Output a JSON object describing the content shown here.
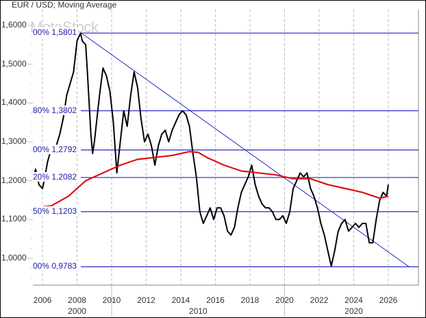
{
  "chart_data": {
    "type": "line",
    "title": "EUR / USD; Moving Average",
    "watermark": "MetaStock",
    "xlabel": "",
    "ylabel": "",
    "xlim": [
      2005.5,
      2027.6
    ],
    "ylim": [
      0.94,
      1.625
    ],
    "grid": {
      "vertical_dashed": true,
      "horizontal": false
    },
    "y_ticks": [
      "1,6000",
      "1,5000",
      "1,4000",
      "1,3000",
      "1,2000",
      "1,1000",
      "1,0000"
    ],
    "x_ticks": [
      "2006",
      "2008",
      "2010",
      "2012",
      "2014",
      "2016",
      "2018",
      "2020",
      "2022",
      "2024",
      "2026"
    ],
    "x_decade_labels": [
      {
        "label": "2000",
        "x": 2008
      },
      {
        "label": "2010",
        "x": 2015
      },
      {
        "label": "2020",
        "x": 2024
      }
    ],
    "fibonacci_levels": [
      {
        "label": "00% 1,5801",
        "value": 1.5801
      },
      {
        "label": "80% 1,3802",
        "value": 1.3802
      },
      {
        "label": "00% 1,2792",
        "value": 1.2792
      },
      {
        "label": "20% 1,2082",
        "value": 1.2082
      },
      {
        "label": "50% 1,1203",
        "value": 1.1203
      },
      {
        "label": "00% 0,9783",
        "value": 0.9783
      }
    ],
    "trendline": {
      "from": [
        2008.25,
        1.5801
      ],
      "to": [
        2027.2,
        0.9783
      ],
      "color": "#2a2acc"
    },
    "series": [
      {
        "name": "EUR/USD",
        "color": "#000000",
        "x": [
          2005.5,
          2005.6,
          2005.8,
          2006.0,
          2006.1,
          2006.3,
          2006.5,
          2006.6,
          2006.8,
          2007.0,
          2007.2,
          2007.4,
          2007.6,
          2007.8,
          2008.0,
          2008.2,
          2008.3,
          2008.5,
          2008.6,
          2008.8,
          2008.9,
          2009.0,
          2009.1,
          2009.3,
          2009.5,
          2009.7,
          2009.9,
          2010.1,
          2010.3,
          2010.5,
          2010.7,
          2010.9,
          2011.1,
          2011.3,
          2011.5,
          2011.7,
          2011.9,
          2012.1,
          2012.3,
          2012.5,
          2012.7,
          2012.9,
          2013.1,
          2013.3,
          2013.5,
          2013.7,
          2013.9,
          2014.1,
          2014.3,
          2014.5,
          2014.7,
          2014.9,
          2015.1,
          2015.3,
          2015.5,
          2015.7,
          2015.9,
          2016.1,
          2016.3,
          2016.5,
          2016.7,
          2016.9,
          2017.1,
          2017.3,
          2017.5,
          2017.7,
          2017.9,
          2018.1,
          2018.3,
          2018.5,
          2018.7,
          2018.9,
          2019.1,
          2019.3,
          2019.5,
          2019.7,
          2019.9,
          2020.1,
          2020.3,
          2020.5,
          2020.7,
          2020.9,
          2021.1,
          2021.3,
          2021.5,
          2021.7,
          2021.9,
          2022.1,
          2022.3,
          2022.5,
          2022.7,
          2022.9,
          2023.1,
          2023.3,
          2023.5,
          2023.7,
          2023.9,
          2024.1,
          2024.3,
          2024.5,
          2024.7,
          2024.9,
          2025.1,
          2025.3,
          2025.5,
          2025.7,
          2025.9,
          2026.0
        ],
        "values": [
          1.21,
          1.23,
          1.19,
          1.18,
          1.2,
          1.25,
          1.28,
          1.27,
          1.29,
          1.32,
          1.36,
          1.42,
          1.45,
          1.48,
          1.56,
          1.58,
          1.56,
          1.55,
          1.48,
          1.32,
          1.27,
          1.3,
          1.34,
          1.42,
          1.49,
          1.47,
          1.43,
          1.35,
          1.22,
          1.3,
          1.38,
          1.34,
          1.42,
          1.48,
          1.44,
          1.36,
          1.3,
          1.32,
          1.29,
          1.24,
          1.29,
          1.32,
          1.33,
          1.3,
          1.33,
          1.35,
          1.37,
          1.38,
          1.37,
          1.34,
          1.27,
          1.21,
          1.12,
          1.09,
          1.11,
          1.13,
          1.1,
          1.13,
          1.13,
          1.11,
          1.07,
          1.06,
          1.08,
          1.13,
          1.17,
          1.19,
          1.21,
          1.24,
          1.19,
          1.16,
          1.14,
          1.13,
          1.13,
          1.12,
          1.1,
          1.1,
          1.11,
          1.09,
          1.12,
          1.18,
          1.2,
          1.22,
          1.21,
          1.22,
          1.18,
          1.16,
          1.13,
          1.09,
          1.06,
          1.02,
          0.98,
          1.02,
          1.07,
          1.09,
          1.1,
          1.07,
          1.08,
          1.09,
          1.08,
          1.09,
          1.09,
          1.04,
          1.04,
          1.1,
          1.15,
          1.17,
          1.16,
          1.19
        ]
      },
      {
        "name": "Moving Average",
        "color": "#dd1111",
        "x": [
          2005.5,
          2006.5,
          2007.5,
          2008.5,
          2009.5,
          2010.5,
          2011.5,
          2012.5,
          2013.5,
          2014.5,
          2015.0,
          2015.5,
          2016.5,
          2017.5,
          2018.5,
          2019.5,
          2020.5,
          2021.5,
          2022.5,
          2023.5,
          2024.5,
          2025.5,
          2026.0
        ],
        "values": [
          1.13,
          1.135,
          1.16,
          1.2,
          1.22,
          1.24,
          1.255,
          1.26,
          1.265,
          1.275,
          1.273,
          1.26,
          1.24,
          1.225,
          1.22,
          1.215,
          1.205,
          1.205,
          1.19,
          1.18,
          1.17,
          1.155,
          1.16
        ]
      }
    ]
  }
}
